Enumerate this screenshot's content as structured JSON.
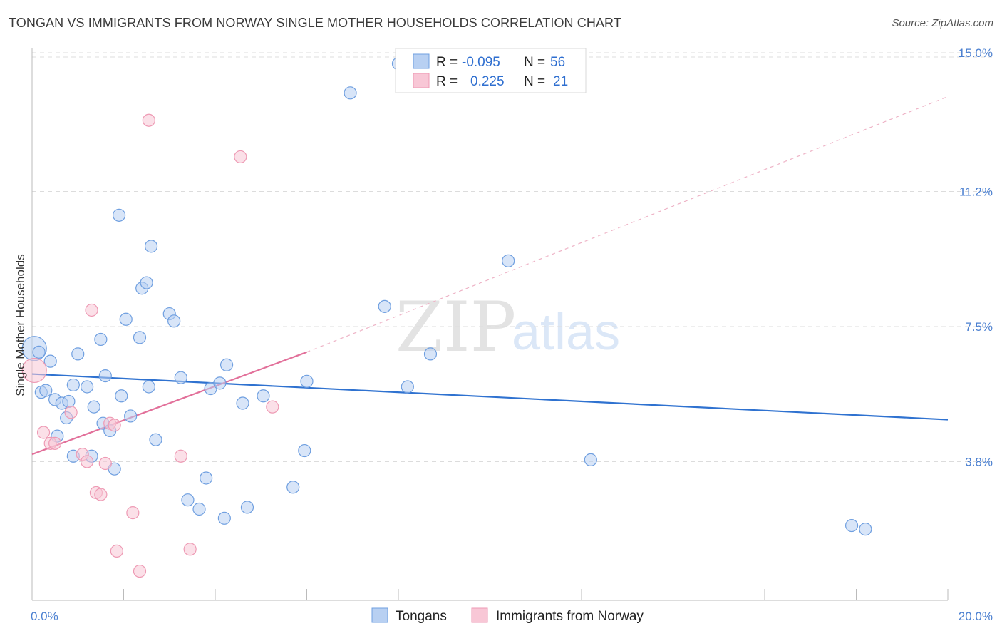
{
  "title": "TONGAN VS IMMIGRANTS FROM NORWAY SINGLE MOTHER HOUSEHOLDS CORRELATION CHART",
  "source": "Source: ZipAtlas.com",
  "watermark": {
    "zip": "ZIP",
    "atlas": "atlas"
  },
  "stats_legend": {
    "rows": [
      {
        "r_label": "R =",
        "r_value": "-0.095",
        "n_label": "N =",
        "n_value": "56"
      },
      {
        "r_label": "R =",
        "r_value": "0.225",
        "n_label": "N =",
        "n_value": "21"
      }
    ]
  },
  "chart_data": {
    "type": "scatter",
    "title": "TONGAN VS IMMIGRANTS FROM NORWAY SINGLE MOTHER HOUSEHOLDS CORRELATION CHART",
    "xlabel": "",
    "ylabel": "Single Mother Households",
    "xlim": [
      0,
      20
    ],
    "ylim": [
      0,
      15.5
    ],
    "x_tick_labels": [
      "0.0%",
      "20.0%"
    ],
    "y_ticks": [
      3.8,
      7.5,
      11.2,
      15.0
    ],
    "y_tick_labels": [
      "3.8%",
      "7.5%",
      "11.2%",
      "15.0%"
    ],
    "grid": true,
    "legend_position": "bottom",
    "series": [
      {
        "name": "Tongans",
        "color": "#6f9fe0",
        "fill": "#b8d0f2",
        "points": [
          [
            0.05,
            6.9
          ],
          [
            0.15,
            6.8
          ],
          [
            0.2,
            5.7
          ],
          [
            0.3,
            5.75
          ],
          [
            0.4,
            6.55
          ],
          [
            0.5,
            5.5
          ],
          [
            0.65,
            5.4
          ],
          [
            0.55,
            4.5
          ],
          [
            0.75,
            5.0
          ],
          [
            0.8,
            5.45
          ],
          [
            0.9,
            5.9
          ],
          [
            0.9,
            3.95
          ],
          [
            1.0,
            6.75
          ],
          [
            1.2,
            5.85
          ],
          [
            1.3,
            3.95
          ],
          [
            1.35,
            5.3
          ],
          [
            1.5,
            7.15
          ],
          [
            1.55,
            4.85
          ],
          [
            1.6,
            6.15
          ],
          [
            1.7,
            4.65
          ],
          [
            1.8,
            3.6
          ],
          [
            1.9,
            10.55
          ],
          [
            1.95,
            5.6
          ],
          [
            2.05,
            7.7
          ],
          [
            2.15,
            5.05
          ],
          [
            2.35,
            7.2
          ],
          [
            2.4,
            8.55
          ],
          [
            2.5,
            8.7
          ],
          [
            2.55,
            5.85
          ],
          [
            2.6,
            9.7
          ],
          [
            2.7,
            4.4
          ],
          [
            3.0,
            7.85
          ],
          [
            3.1,
            7.65
          ],
          [
            3.25,
            6.1
          ],
          [
            3.4,
            2.75
          ],
          [
            3.65,
            2.5
          ],
          [
            3.8,
            3.35
          ],
          [
            3.9,
            5.8
          ],
          [
            4.1,
            5.95
          ],
          [
            4.2,
            2.25
          ],
          [
            4.25,
            6.45
          ],
          [
            4.6,
            5.4
          ],
          [
            4.7,
            2.55
          ],
          [
            5.05,
            5.6
          ],
          [
            5.7,
            3.1
          ],
          [
            5.95,
            4.1
          ],
          [
            6.0,
            6.0
          ],
          [
            6.95,
            13.9
          ],
          [
            7.7,
            8.05
          ],
          [
            8.0,
            14.7
          ],
          [
            8.2,
            5.85
          ],
          [
            8.7,
            6.75
          ],
          [
            10.4,
            9.3
          ],
          [
            12.2,
            3.85
          ],
          [
            17.9,
            2.05
          ],
          [
            18.2,
            1.95
          ]
        ]
      },
      {
        "name": "Immigrants from Norway",
        "color": "#ee9ab4",
        "fill": "#f8c7d6",
        "points": [
          [
            0.05,
            6.3
          ],
          [
            0.25,
            4.6
          ],
          [
            0.4,
            4.3
          ],
          [
            0.5,
            4.3
          ],
          [
            0.85,
            5.15
          ],
          [
            1.1,
            4.0
          ],
          [
            1.2,
            3.8
          ],
          [
            1.4,
            2.95
          ],
          [
            1.5,
            2.9
          ],
          [
            1.6,
            3.75
          ],
          [
            1.3,
            7.95
          ],
          [
            1.7,
            4.85
          ],
          [
            1.8,
            4.8
          ],
          [
            1.85,
            1.35
          ],
          [
            2.2,
            2.4
          ],
          [
            2.35,
            0.8
          ],
          [
            2.55,
            13.15
          ],
          [
            3.25,
            3.95
          ],
          [
            3.45,
            1.4
          ],
          [
            4.55,
            12.15
          ],
          [
            5.25,
            5.3
          ]
        ]
      }
    ],
    "trendlines": [
      {
        "series": "Tongans",
        "x": [
          0,
          20
        ],
        "y": [
          6.2,
          4.95
        ]
      },
      {
        "series": "Immigrants from Norway",
        "x": [
          0,
          6
        ],
        "y": [
          4.0,
          6.8
        ],
        "extended_x": [
          6,
          20
        ],
        "extended_y": [
          6.8,
          13.8
        ]
      }
    ]
  }
}
